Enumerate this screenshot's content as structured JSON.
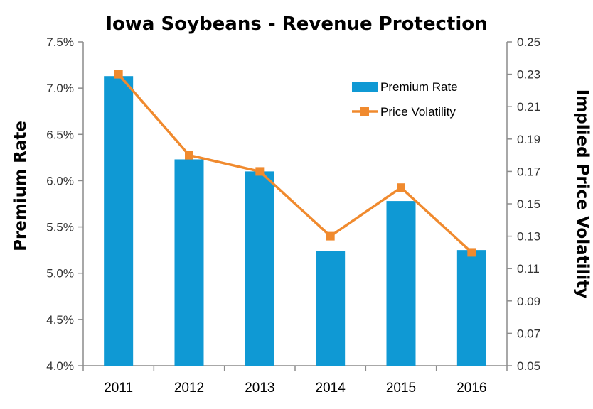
{
  "chart_data": {
    "type": "bar",
    "title": "Iowa Soybeans - Revenue Protection",
    "categories": [
      "2011",
      "2012",
      "2013",
      "2014",
      "2015",
      "2016"
    ],
    "series": [
      {
        "name": "Premium Rate",
        "type": "bar",
        "axis": "left",
        "color": "#0f99d4",
        "values": [
          7.13,
          6.23,
          6.1,
          5.24,
          5.78,
          5.25
        ]
      },
      {
        "name": "Price Volatility",
        "type": "line",
        "axis": "right",
        "color": "#f08a2e",
        "values": [
          0.23,
          0.18,
          0.17,
          0.13,
          0.16,
          0.12
        ]
      }
    ],
    "ylabel": "Premium Rate",
    "ylim": [
      4.0,
      7.5
    ],
    "yticks": [
      "4.0%",
      "4.5%",
      "5.0%",
      "5.5%",
      "6.0%",
      "6.5%",
      "7.0%",
      "7.5%"
    ],
    "y2label": "Implied Price Volatility",
    "y2lim": [
      0.05,
      0.25
    ],
    "y2ticks": [
      "0.05",
      "0.07",
      "0.09",
      "0.11",
      "0.13",
      "0.15",
      "0.17",
      "0.19",
      "0.21",
      "0.23",
      "0.25"
    ],
    "legend_position": "top-right",
    "grid": false
  }
}
